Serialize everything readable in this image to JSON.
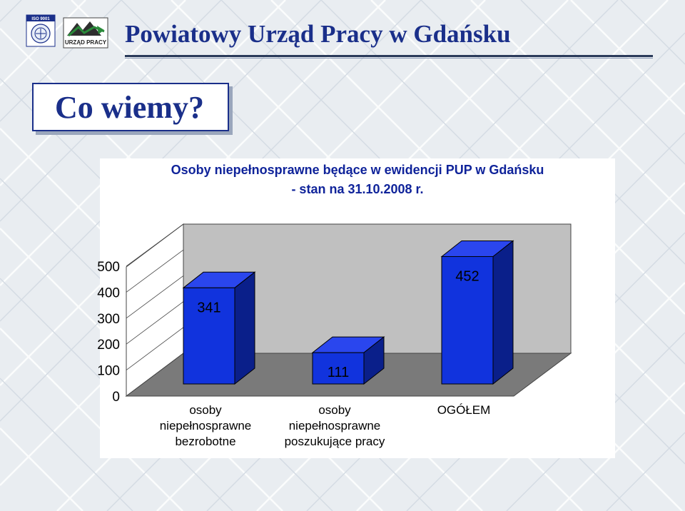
{
  "header": {
    "title": "Powiatowy Urząd Pracy w Gdańsku",
    "iso_badge": "ISO 9001",
    "logo_text": "URZĄD PRACY"
  },
  "subtitle_box": {
    "text": "Co wiemy?"
  },
  "colors": {
    "bar": "#1133dd",
    "bar_top": "#2a46ee",
    "bar_side": "#0a1f8a",
    "title": "#1a2f8a"
  },
  "chart_data": {
    "type": "bar",
    "title_lines": [
      "Osoby niepełnosprawne będące w ewidencji PUP w Gdańsku",
      "- stan na 31.10.2008 r."
    ],
    "categories": [
      [
        "osoby",
        "niepełnosprawne",
        "bezrobotne"
      ],
      [
        "osoby",
        "niepełnosprawne",
        "poszukujące pracy"
      ],
      [
        "OGÓŁEM"
      ]
    ],
    "values": [
      341,
      111,
      452
    ],
    "ylim": [
      0,
      500
    ],
    "yticks": [
      0,
      100,
      200,
      300,
      400,
      500
    ],
    "grid": false,
    "style": "3d-column",
    "legend": "none"
  }
}
